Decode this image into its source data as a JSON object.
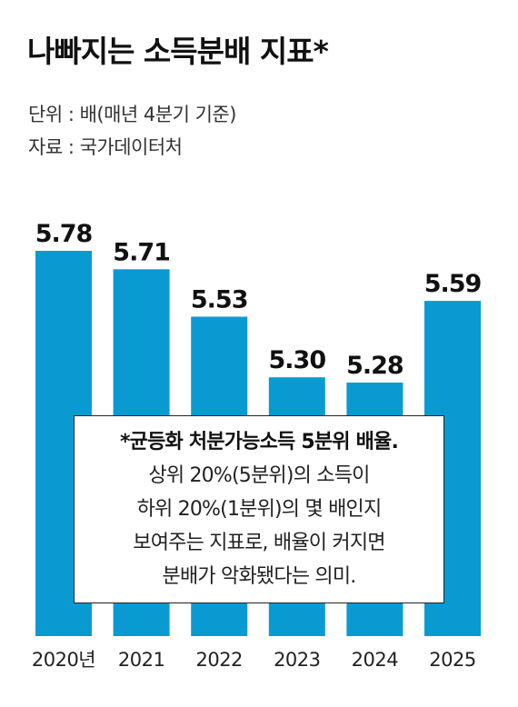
{
  "header": {
    "title": "나빠지는 소득분배 지표*",
    "unit_note": "단위 : 배(매년 4분기 기준)",
    "source_note": "자료 : 국가데이터처"
  },
  "colors": {
    "bar": "#0a9ad2",
    "text": "#111111",
    "box_border": "#222222"
  },
  "footnote": {
    "lines": [
      "*균등화 처분가능소득 5분위 배율.",
      "상위 20%(5분위)의 소득이",
      "하위 20%(1분위)의 몇 배인지",
      "보여주는 지표로, 배율이 커지면",
      "분배가 악화됐다는 의미."
    ]
  },
  "chart_data": {
    "type": "bar",
    "categories": [
      "2020년",
      "2021",
      "2022",
      "2023",
      "2024",
      "2025"
    ],
    "values": [
      5.78,
      5.71,
      5.53,
      5.3,
      5.28,
      5.59
    ],
    "value_labels": [
      "5.78",
      "5.71",
      "5.53",
      "5.30",
      "5.28",
      "5.59"
    ],
    "title": "나빠지는 소득분배 지표*",
    "xlabel": "",
    "ylabel": "",
    "unit": "배",
    "grid": false,
    "legend": "none"
  }
}
